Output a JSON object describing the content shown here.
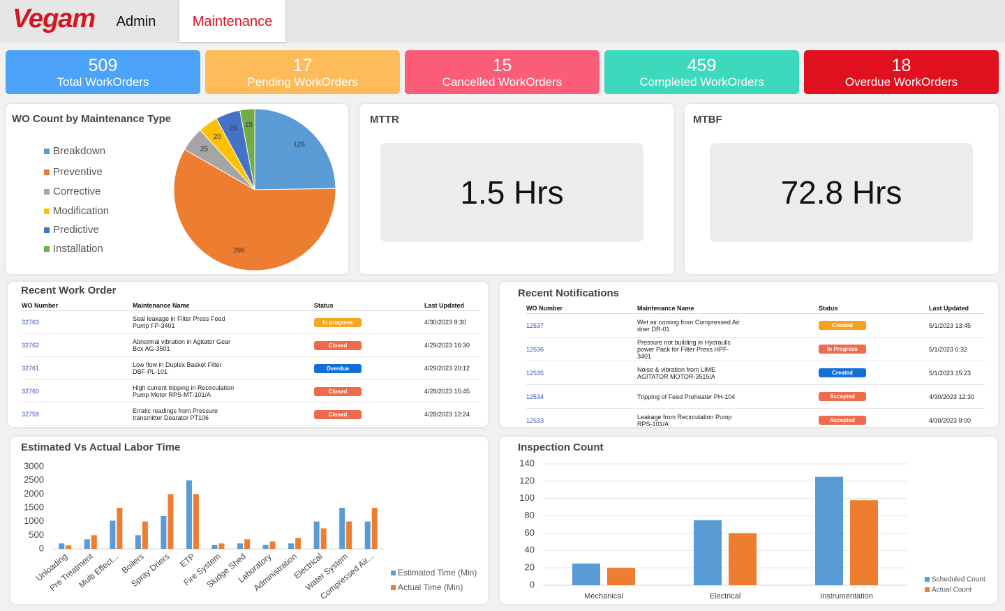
{
  "header": {
    "logo": "Vegam",
    "tabs": [
      "Admin",
      "Maintenance"
    ]
  },
  "kpis": [
    {
      "value": 509,
      "label": "Total WorkOrders",
      "color": "#4da3f7"
    },
    {
      "value": 17,
      "label": "Pending WorkOrders",
      "color": "#fdbb5a"
    },
    {
      "value": 15,
      "label": "Cancelled WorkOrders",
      "color": "#fb5c78"
    },
    {
      "value": 459,
      "label": "Completed WorkOrders",
      "color": "#3dd9bc"
    },
    {
      "value": 18,
      "label": "Overdue WorkOrders",
      "color": "#e0101e"
    }
  ],
  "chart_data": [
    {
      "type": "pie",
      "title": "WO Count by Maintenance Type",
      "categories": [
        "Breakdown",
        "Preventive",
        "Corrective",
        "Modification",
        "Predictive",
        "Installation"
      ],
      "values": [
        126,
        298,
        25,
        20,
        25,
        15
      ],
      "colors": [
        "#5b9bd5",
        "#ed7d31",
        "#a5a5a5",
        "#ffc000",
        "#4472c4",
        "#70ad47"
      ]
    },
    {
      "type": "bar",
      "title": "Estimated Vs Actual Labor Time",
      "categories": [
        "Unloading",
        "Pre Treatment",
        "Multi Effect...",
        "Boilers",
        "Spray Driers",
        "ETP",
        "Fire System",
        "Sludge Shed",
        "Laboratory",
        "Administration",
        "Electrical",
        "Water System",
        "Compressed Air..."
      ],
      "series": [
        {
          "name": "Estimated Time (Min)",
          "color": "#5b9bd5",
          "values": [
            200,
            350,
            1030,
            500,
            1200,
            2500,
            150,
            200,
            150,
            200,
            1000,
            1500,
            1000
          ]
        },
        {
          "name": "Actual Time (Min)",
          "color": "#ed7d31",
          "values": [
            130,
            500,
            1500,
            1000,
            2000,
            2000,
            200,
            350,
            270,
            400,
            750,
            1000,
            1500
          ]
        }
      ],
      "ylim": [
        0,
        3000
      ],
      "yticks": [
        0,
        500,
        1000,
        1500,
        2000,
        2500,
        3000
      ],
      "grid": false
    },
    {
      "type": "bar",
      "title": "Inspection Count",
      "categories": [
        "Mechanical",
        "Electrical",
        "Instrumentation"
      ],
      "series": [
        {
          "name": "Scheduled Count",
          "color": "#5b9bd5",
          "values": [
            25,
            75,
            125
          ]
        },
        {
          "name": "Actual Count",
          "color": "#ed7d31",
          "values": [
            20,
            60,
            98
          ]
        }
      ],
      "ylim": [
        0,
        140
      ],
      "yticks": [
        0,
        20,
        40,
        60,
        80,
        100,
        120,
        140
      ],
      "grid": true
    }
  ],
  "mttr": {
    "title": "MTTR",
    "value": "1.5 Hrs"
  },
  "mtbf": {
    "title": "MTBF",
    "value": "72.8 Hrs"
  },
  "work_orders": {
    "title": "Recent Work Order",
    "columns": [
      "WO Number",
      "Maintenance Name",
      "Status",
      "Last Updated"
    ],
    "rows": [
      [
        "32763",
        "Seal leakage in Filter Press Feed Pump FP-3401",
        "In progress",
        "4/30/2023 9:30"
      ],
      [
        "32762",
        "Abnormal vibration in Agitator Gear Box AG-3501",
        "Closed",
        "4/29/2023 16:30"
      ],
      [
        "32761",
        "Low flow in Duplex Basket Filter DBF-PL-101",
        "Overdue",
        "4/29/2023 20:12"
      ],
      [
        "32760",
        "High current tripping in Recirculation Pump Motor RPS-MT-101/A",
        "Closed",
        "4/28/2023 15:45"
      ],
      [
        "32759",
        "Erratic readings from Pressure transmitter Dearator PT106",
        "Closed",
        "4/28/2023 12:24"
      ]
    ],
    "status_colors": [
      "#f5a623",
      "#ee6a4a",
      "#0f6fd8",
      "#ee6a4a",
      "#ee6a4a"
    ]
  },
  "notifications": {
    "title": "Recent Notifications",
    "columns": [
      "WO Number",
      "Maintenance Name",
      "Status",
      "Last Updated"
    ],
    "rows": [
      [
        "12537",
        "Wet air coming from Compressed Air drier DR-01",
        "Created",
        "5/1/2023 13:45"
      ],
      [
        "12536",
        "Pressure not building in Hydraulic power Pack for Filter Press HPF- 3401",
        "In Progress",
        "5/1/2023 6:32"
      ],
      [
        "12535",
        "Noise & vibration from LIME AGITATOR MOTOR-3515/A",
        "Created",
        "5/1/2023 15:23"
      ],
      [
        "12534",
        "Tripping of Feed Preheater PH-104",
        "Accepted",
        "4/30/2023 12:30"
      ],
      [
        "12533",
        "Leakage from Recirculation Pump RPS-101/A",
        "Accepted",
        "4/30/2023 9:00"
      ]
    ],
    "status_colors": [
      "#f7a120",
      "#f26a4b",
      "#1170d8",
      "#f26a4b",
      "#f26a4b"
    ]
  }
}
